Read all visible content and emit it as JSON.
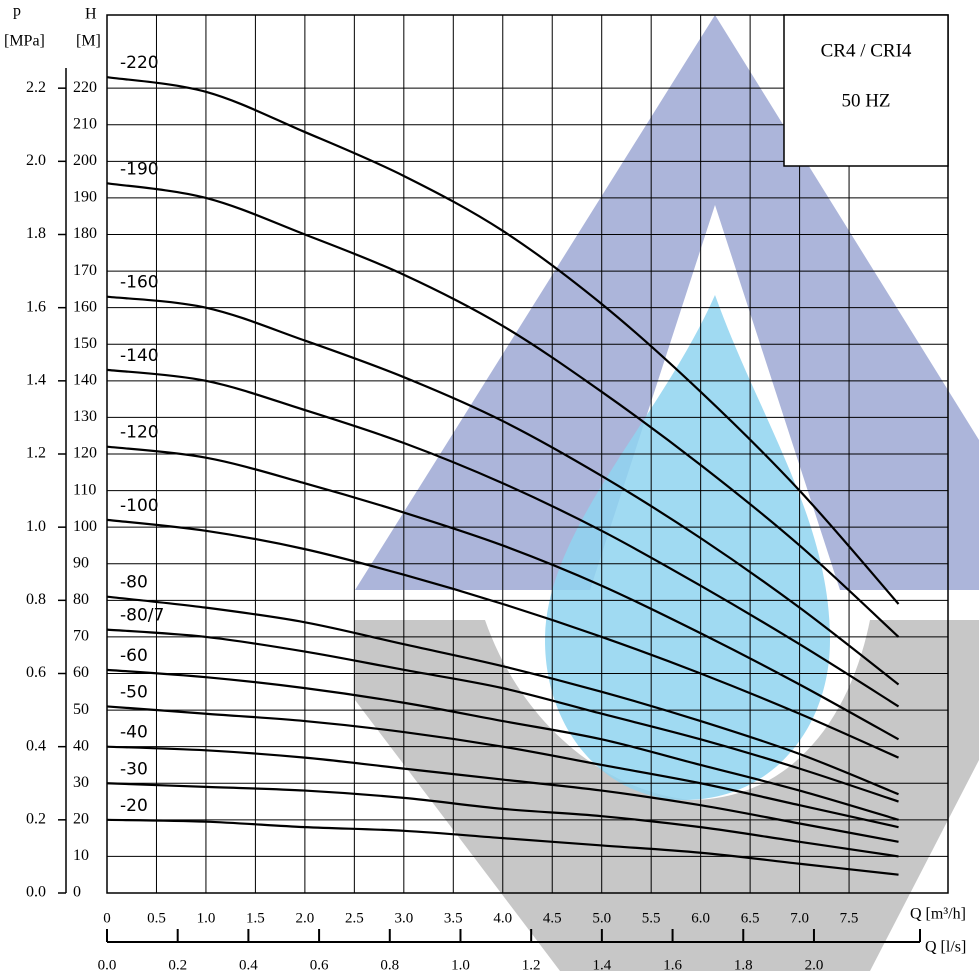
{
  "chart_data": {
    "type": "line",
    "annotations": [
      "CR4 / CRI4",
      "50 HZ"
    ],
    "y_label": "H",
    "y_unit": "[M]",
    "y2_label": "p",
    "y2_unit": "[MPa]",
    "x_label": "Q [m³/h]",
    "x2_label": "Q [l/s]",
    "x": [
      0,
      1,
      2,
      3,
      4,
      5,
      6,
      7,
      8
    ],
    "series": [
      {
        "name": "-220",
        "color": "#000000",
        "values": [
          223,
          219,
          208,
          196,
          181,
          161,
          137,
          110,
          79
        ]
      },
      {
        "name": "-190",
        "color": "#000000",
        "values": [
          194,
          190,
          180,
          169,
          155,
          137,
          117,
          95,
          70
        ]
      },
      {
        "name": "-160",
        "color": "#000000",
        "values": [
          163,
          160,
          151,
          141,
          129,
          114,
          97,
          78,
          57
        ]
      },
      {
        "name": "-140",
        "color": "#000000",
        "values": [
          143,
          140,
          132,
          123,
          112,
          99,
          84,
          68,
          51
        ]
      },
      {
        "name": "-120",
        "color": "#000000",
        "values": [
          122,
          119,
          112,
          104,
          95,
          84,
          71,
          57,
          42
        ]
      },
      {
        "name": "-100",
        "color": "#000000",
        "values": [
          102,
          99,
          94,
          87,
          79,
          70,
          60,
          49,
          37
        ]
      },
      {
        "name": "-80",
        "color": "#000000",
        "values": [
          81,
          78,
          74,
          68,
          62,
          55,
          47,
          38,
          27
        ]
      },
      {
        "name": "-80/7",
        "color": "#000000",
        "values": [
          72,
          70,
          66,
          61,
          56,
          49,
          42,
          34,
          25
        ]
      },
      {
        "name": "-60",
        "color": "#000000",
        "values": [
          61,
          59,
          56,
          52,
          47,
          42,
          35,
          28,
          20
        ]
      },
      {
        "name": "-50",
        "color": "#000000",
        "values": [
          51,
          49,
          47,
          44,
          40,
          35,
          30,
          24,
          18
        ]
      },
      {
        "name": "-40",
        "color": "#000000",
        "values": [
          40,
          39,
          37,
          34,
          31,
          28,
          24,
          19,
          14
        ]
      },
      {
        "name": "-30",
        "color": "#000000",
        "values": [
          30,
          29,
          28,
          26,
          23,
          21,
          18,
          14,
          10
        ]
      },
      {
        "name": "-20",
        "color": "#000000",
        "values": [
          20,
          19.5,
          18,
          17,
          15,
          13,
          11,
          8,
          5
        ]
      }
    ],
    "xlim": [
      0,
      8.5
    ],
    "xticks": [
      0,
      0.5,
      {
        "value": 1,
        "label": "1.0"
      },
      1.5,
      {
        "value": 2,
        "label": "2.0"
      },
      2.5,
      {
        "value": 3,
        "label": "3.0"
      },
      3.5,
      {
        "value": 4,
        "label": "4.0"
      },
      4.5,
      {
        "value": 5,
        "label": "5.0"
      },
      5.5,
      {
        "value": 6,
        "label": "6.0"
      },
      6.5,
      {
        "value": 7,
        "label": "7.0"
      },
      7.5
    ],
    "ylim": [
      0,
      240
    ],
    "yticks": [
      0,
      10,
      20,
      30,
      40,
      50,
      60,
      70,
      80,
      90,
      100,
      110,
      120,
      130,
      140,
      150,
      160,
      170,
      180,
      190,
      200,
      210,
      220
    ],
    "y2lim": [
      0,
      2.4
    ],
    "y2ticks": [
      {
        "value": 0,
        "label": "0.0"
      },
      0.2,
      0.4,
      0.6,
      0.8,
      {
        "value": 1,
        "label": "1.0"
      },
      1.2,
      1.4,
      1.6,
      1.8,
      {
        "value": 2,
        "label": "2.0"
      },
      2.2
    ],
    "x2lim": [
      0,
      2.3
    ],
    "x2ticks": [
      {
        "value": 0,
        "label": "0.0"
      },
      0.2,
      0.4,
      0.6,
      0.8,
      {
        "value": 1,
        "label": "1.0"
      },
      1.2,
      1.4,
      1.6,
      1.8,
      {
        "value": 2,
        "label": "2.0"
      }
    ],
    "grid": true
  }
}
